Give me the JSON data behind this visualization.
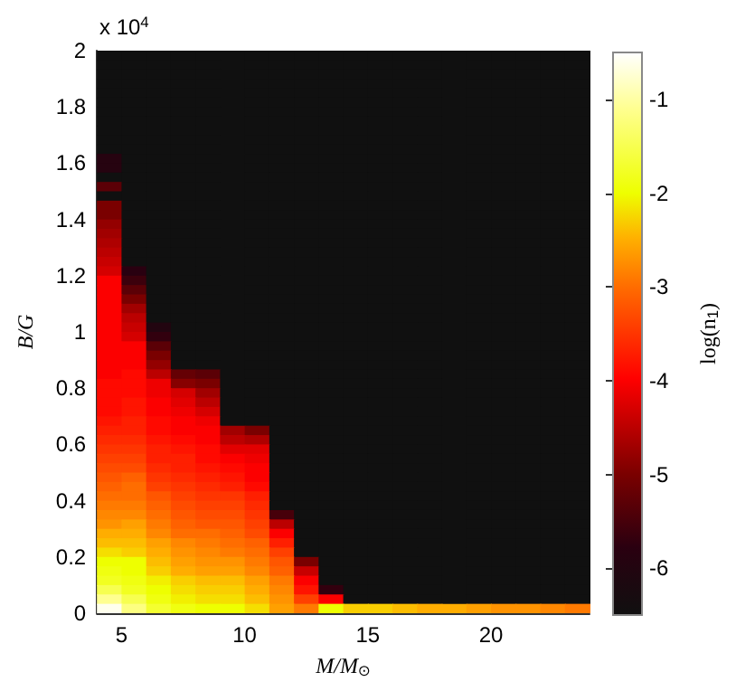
{
  "chart_data": {
    "type": "heatmap",
    "xlabel": "M/M$_{⊙}$",
    "ylabel": "B/G",
    "clabel": "log(n$_{1}$)",
    "annotations": [
      "x 10$^{4}$"
    ],
    "xlim": [
      4,
      24
    ],
    "xticks": [
      5,
      10,
      15,
      20
    ],
    "ylim": [
      0,
      2
    ],
    "yticks": [
      0,
      0.2,
      0.4,
      0.6,
      0.8,
      1,
      1.2,
      1.4,
      1.6,
      1.8,
      2
    ],
    "clim": [
      -6.5,
      -0.5
    ],
    "cticks": [
      -6,
      -5,
      -4,
      -3,
      -2,
      -1
    ],
    "cells": [
      [
        -6.5,
        -6.5,
        -6.5,
        -6.5,
        -6.5,
        -6.5,
        -6.5,
        -6.5,
        -6.5,
        -6.5,
        -6.5,
        -6.5,
        -6.5,
        -6.5,
        -6.5,
        -6.5,
        -6.5,
        -6.5,
        -6.5,
        -6.5
      ],
      [
        -6.5,
        -6.5,
        -6.5,
        -6.5,
        -6.5,
        -6.5,
        -6.5,
        -6.5,
        -6.5,
        -6.5,
        -6.5,
        -6.5,
        -6.5,
        -6.5,
        -6.5,
        -6.5,
        -6.5,
        -6.5,
        -6.5,
        -6.5
      ],
      [
        -6.5,
        -6.5,
        -6.5,
        -6.5,
        -6.5,
        -6.5,
        -6.5,
        -6.5,
        -6.5,
        -6.5,
        -6.5,
        -6.5,
        -6.5,
        -6.5,
        -6.5,
        -6.5,
        -6.5,
        -6.5,
        -6.5,
        -6.5
      ],
      [
        -6.5,
        -6.5,
        -6.5,
        -6.5,
        -6.5,
        -6.5,
        -6.5,
        -6.5,
        -6.5,
        -6.5,
        -6.5,
        -6.5,
        -6.5,
        -6.5,
        -6.5,
        -6.5,
        -6.5,
        -6.5,
        -6.5,
        -6.5
      ],
      [
        -6.5,
        -6.5,
        -6.5,
        -6.5,
        -6.5,
        -6.5,
        -6.5,
        -6.5,
        -6.5,
        -6.5,
        -6.5,
        -6.5,
        -6.5,
        -6.5,
        -6.5,
        -6.5,
        -6.5,
        -6.5,
        -6.5,
        -6.5
      ],
      [
        -6.5,
        -6.5,
        -6.5,
        -6.5,
        -6.5,
        -6.5,
        -6.5,
        -6.5,
        -6.5,
        -6.5,
        -6.5,
        -6.5,
        -6.5,
        -6.5,
        -6.5,
        -6.5,
        -6.5,
        -6.5,
        -6.5,
        -6.5
      ],
      [
        -6.5,
        -6.5,
        -6.5,
        -6.5,
        -6.5,
        -6.5,
        -6.5,
        -6.5,
        -6.5,
        -6.5,
        -6.5,
        -6.5,
        -6.5,
        -6.5,
        -6.5,
        -6.5,
        -6.5,
        -6.5,
        -6.5,
        -6.5
      ],
      [
        -6.5,
        -6.5,
        -6.5,
        -6.5,
        -6.5,
        -6.5,
        -6.5,
        -6.5,
        -6.5,
        -6.5,
        -6.5,
        -6.5,
        -6.5,
        -6.5,
        -6.5,
        -6.5,
        -6.5,
        -6.5,
        -6.5,
        -6.5
      ],
      [
        -6.5,
        -6.5,
        -6.5,
        -6.5,
        -6.5,
        -6.5,
        -6.5,
        -6.5,
        -6.5,
        -6.5,
        -6.5,
        -6.5,
        -6.5,
        -6.5,
        -6.5,
        -6.5,
        -6.5,
        -6.5,
        -6.5,
        -6.5
      ],
      [
        -6.5,
        -6.5,
        -6.5,
        -6.5,
        -6.5,
        -6.5,
        -6.5,
        -6.5,
        -6.5,
        -6.5,
        -6.5,
        -6.5,
        -6.5,
        -6.5,
        -6.5,
        -6.5,
        -6.5,
        -6.5,
        -6.5,
        -6.5
      ],
      [
        -6.5,
        -6.5,
        -6.5,
        -6.5,
        -6.5,
        -6.5,
        -6.5,
        -6.5,
        -6.5,
        -6.5,
        -6.5,
        -6.5,
        -6.5,
        -6.5,
        -6.5,
        -6.5,
        -6.5,
        -6.5,
        -6.5,
        -6.5
      ],
      [
        -5.9,
        -6.5,
        -6.5,
        -6.5,
        -6.5,
        -6.5,
        -6.5,
        -6.5,
        -6.5,
        -6.5,
        -6.5,
        -6.5,
        -6.5,
        -6.5,
        -6.5,
        -6.5,
        -6.5,
        -6.5,
        -6.5,
        -6.5
      ],
      [
        -5.9,
        -6.5,
        -6.5,
        -6.5,
        -6.5,
        -6.5,
        -6.5,
        -6.5,
        -6.5,
        -6.5,
        -6.5,
        -6.5,
        -6.5,
        -6.5,
        -6.5,
        -6.5,
        -6.5,
        -6.5,
        -6.5,
        -6.5
      ],
      [
        -6.5,
        -6.5,
        -6.5,
        -6.5,
        -6.5,
        -6.5,
        -6.5,
        -6.5,
        -6.5,
        -6.5,
        -6.5,
        -6.5,
        -6.5,
        -6.5,
        -6.5,
        -6.5,
        -6.5,
        -6.5,
        -6.5,
        -6.5
      ],
      [
        -5.3,
        -6.5,
        -6.5,
        -6.5,
        -6.5,
        -6.5,
        -6.5,
        -6.5,
        -6.5,
        -6.5,
        -6.5,
        -6.5,
        -6.5,
        -6.5,
        -6.5,
        -6.5,
        -6.5,
        -6.5,
        -6.5,
        -6.5
      ],
      [
        -6.5,
        -6.5,
        -6.5,
        -6.5,
        -6.5,
        -6.5,
        -6.5,
        -6.5,
        -6.5,
        -6.5,
        -6.5,
        -6.5,
        -6.5,
        -6.5,
        -6.5,
        -6.5,
        -6.5,
        -6.5,
        -6.5,
        -6.5
      ],
      [
        -5.0,
        -6.5,
        -6.5,
        -6.5,
        -6.5,
        -6.5,
        -6.5,
        -6.5,
        -6.5,
        -6.5,
        -6.5,
        -6.5,
        -6.5,
        -6.5,
        -6.5,
        -6.5,
        -6.5,
        -6.5,
        -6.5,
        -6.5
      ],
      [
        -5.0,
        -6.5,
        -6.5,
        -6.5,
        -6.5,
        -6.5,
        -6.5,
        -6.5,
        -6.5,
        -6.5,
        -6.5,
        -6.5,
        -6.5,
        -6.5,
        -6.5,
        -6.5,
        -6.5,
        -6.5,
        -6.5,
        -6.5
      ],
      [
        -4.8,
        -6.5,
        -6.5,
        -6.5,
        -6.5,
        -6.5,
        -6.5,
        -6.5,
        -6.5,
        -6.5,
        -6.5,
        -6.5,
        -6.5,
        -6.5,
        -6.5,
        -6.5,
        -6.5,
        -6.5,
        -6.5,
        -6.5
      ],
      [
        -4.7,
        -6.5,
        -6.5,
        -6.5,
        -6.5,
        -6.5,
        -6.5,
        -6.5,
        -6.5,
        -6.5,
        -6.5,
        -6.5,
        -6.5,
        -6.5,
        -6.5,
        -6.5,
        -6.5,
        -6.5,
        -6.5,
        -6.5
      ],
      [
        -4.6,
        -6.5,
        -6.5,
        -6.5,
        -6.5,
        -6.5,
        -6.5,
        -6.5,
        -6.5,
        -6.5,
        -6.5,
        -6.5,
        -6.5,
        -6.5,
        -6.5,
        -6.5,
        -6.5,
        -6.5,
        -6.5,
        -6.5
      ],
      [
        -4.5,
        -6.5,
        -6.5,
        -6.5,
        -6.5,
        -6.5,
        -6.5,
        -6.5,
        -6.5,
        -6.5,
        -6.5,
        -6.5,
        -6.5,
        -6.5,
        -6.5,
        -6.5,
        -6.5,
        -6.5,
        -6.5,
        -6.5
      ],
      [
        -4.4,
        -6.5,
        -6.5,
        -6.5,
        -6.5,
        -6.5,
        -6.5,
        -6.5,
        -6.5,
        -6.5,
        -6.5,
        -6.5,
        -6.5,
        -6.5,
        -6.5,
        -6.5,
        -6.5,
        -6.5,
        -6.5,
        -6.5
      ],
      [
        -4.3,
        -5.8,
        -6.5,
        -6.5,
        -6.5,
        -6.5,
        -6.5,
        -6.5,
        -6.5,
        -6.5,
        -6.5,
        -6.5,
        -6.5,
        -6.5,
        -6.5,
        -6.5,
        -6.5,
        -6.5,
        -6.5,
        -6.5
      ],
      [
        -4.0,
        -5.6,
        -6.5,
        -6.5,
        -6.5,
        -6.5,
        -6.5,
        -6.5,
        -6.5,
        -6.5,
        -6.5,
        -6.5,
        -6.5,
        -6.5,
        -6.5,
        -6.5,
        -6.5,
        -6.5,
        -6.5,
        -6.5
      ],
      [
        -4.0,
        -5.3,
        -6.5,
        -6.5,
        -6.5,
        -6.5,
        -6.5,
        -6.5,
        -6.5,
        -6.5,
        -6.5,
        -6.5,
        -6.5,
        -6.5,
        -6.5,
        -6.5,
        -6.5,
        -6.5,
        -6.5,
        -6.5
      ],
      [
        -4.0,
        -5.0,
        -6.5,
        -6.5,
        -6.5,
        -6.5,
        -6.5,
        -6.5,
        -6.5,
        -6.5,
        -6.5,
        -6.5,
        -6.5,
        -6.5,
        -6.5,
        -6.5,
        -6.5,
        -6.5,
        -6.5,
        -6.5
      ],
      [
        -4.0,
        -4.7,
        -6.5,
        -6.5,
        -6.5,
        -6.5,
        -6.5,
        -6.5,
        -6.5,
        -6.5,
        -6.5,
        -6.5,
        -6.5,
        -6.5,
        -6.5,
        -6.5,
        -6.5,
        -6.5,
        -6.5,
        -6.5
      ],
      [
        -4.0,
        -4.5,
        -6.5,
        -6.5,
        -6.5,
        -6.5,
        -6.5,
        -6.5,
        -6.5,
        -6.5,
        -6.5,
        -6.5,
        -6.5,
        -6.5,
        -6.5,
        -6.5,
        -6.5,
        -6.5,
        -6.5,
        -6.5
      ],
      [
        -4.0,
        -4.4,
        -6.0,
        -6.5,
        -6.5,
        -6.5,
        -6.5,
        -6.5,
        -6.5,
        -6.5,
        -6.5,
        -6.5,
        -6.5,
        -6.5,
        -6.5,
        -6.5,
        -6.5,
        -6.5,
        -6.5,
        -6.5
      ],
      [
        -4.0,
        -4.3,
        -5.7,
        -6.5,
        -6.5,
        -6.5,
        -6.5,
        -6.5,
        -6.5,
        -6.5,
        -6.5,
        -6.5,
        -6.5,
        -6.5,
        -6.5,
        -6.5,
        -6.5,
        -6.5,
        -6.5,
        -6.5
      ],
      [
        -4.0,
        -4.0,
        -5.3,
        -6.5,
        -6.5,
        -6.5,
        -6.5,
        -6.5,
        -6.5,
        -6.5,
        -6.5,
        -6.5,
        -6.5,
        -6.5,
        -6.5,
        -6.5,
        -6.5,
        -6.5,
        -6.5,
        -6.5
      ],
      [
        -4.0,
        -4.0,
        -5.0,
        -6.5,
        -6.5,
        -6.5,
        -6.5,
        -6.5,
        -6.5,
        -6.5,
        -6.5,
        -6.5,
        -6.5,
        -6.5,
        -6.5,
        -6.5,
        -6.5,
        -6.5,
        -6.5,
        -6.5
      ],
      [
        -4.0,
        -4.0,
        -4.8,
        -6.5,
        -6.5,
        -6.5,
        -6.5,
        -6.5,
        -6.5,
        -6.5,
        -6.5,
        -6.5,
        -6.5,
        -6.5,
        -6.5,
        -6.5,
        -6.5,
        -6.5,
        -6.5,
        -6.5
      ],
      [
        -4.0,
        -3.9,
        -4.5,
        -5.2,
        -5.3,
        -6.5,
        -6.5,
        -6.5,
        -6.5,
        -6.5,
        -6.5,
        -6.5,
        -6.5,
        -6.5,
        -6.5,
        -6.5,
        -6.5,
        -6.5,
        -6.5,
        -6.5
      ],
      [
        -3.9,
        -3.9,
        -4.1,
        -4.9,
        -5.0,
        -6.5,
        -6.5,
        -6.5,
        -6.5,
        -6.5,
        -6.5,
        -6.5,
        -6.5,
        -6.5,
        -6.5,
        -6.5,
        -6.5,
        -6.5,
        -6.5,
        -6.5
      ],
      [
        -3.9,
        -3.9,
        -4.1,
        -4.3,
        -4.7,
        -6.5,
        -6.5,
        -6.5,
        -6.5,
        -6.5,
        -6.5,
        -6.5,
        -6.5,
        -6.5,
        -6.5,
        -6.5,
        -6.5,
        -6.5,
        -6.5,
        -6.5
      ],
      [
        -3.9,
        -3.8,
        -4.0,
        -4.2,
        -4.5,
        -6.5,
        -6.5,
        -6.5,
        -6.5,
        -6.5,
        -6.5,
        -6.5,
        -6.5,
        -6.5,
        -6.5,
        -6.5,
        -6.5,
        -6.5,
        -6.5,
        -6.5
      ],
      [
        -3.9,
        -3.8,
        -4.0,
        -4.1,
        -4.3,
        -6.5,
        -6.5,
        -6.5,
        -6.5,
        -6.5,
        -6.5,
        -6.5,
        -6.5,
        -6.5,
        -6.5,
        -6.5,
        -6.5,
        -6.5,
        -6.5,
        -6.5
      ],
      [
        -3.8,
        -3.7,
        -3.9,
        -4.0,
        -4.1,
        -6.5,
        -6.5,
        -6.5,
        -6.5,
        -6.5,
        -6.5,
        -6.5,
        -6.5,
        -6.5,
        -6.5,
        -6.5,
        -6.5,
        -6.5,
        -6.5,
        -6.5
      ],
      [
        -3.7,
        -3.7,
        -3.9,
        -4.0,
        -4.0,
        -4.7,
        -5.0,
        -6.5,
        -6.5,
        -6.5,
        -6.5,
        -6.5,
        -6.5,
        -6.5,
        -6.5,
        -6.5,
        -6.5,
        -6.5,
        -6.5,
        -6.5
      ],
      [
        -3.6,
        -3.6,
        -3.8,
        -3.9,
        -4.0,
        -4.5,
        -4.6,
        -6.5,
        -6.5,
        -6.5,
        -6.5,
        -6.5,
        -6.5,
        -6.5,
        -6.5,
        -6.5,
        -6.5,
        -6.5,
        -6.5,
        -6.5
      ],
      [
        -3.5,
        -3.5,
        -3.7,
        -3.8,
        -3.9,
        -4.2,
        -4.2,
        -6.5,
        -6.5,
        -6.5,
        -6.5,
        -6.5,
        -6.5,
        -6.5,
        -6.5,
        -6.5,
        -6.5,
        -6.5,
        -6.5,
        -6.5
      ],
      [
        -3.4,
        -3.4,
        -3.7,
        -3.7,
        -3.9,
        -4.0,
        -4.1,
        -6.5,
        -6.5,
        -6.5,
        -6.5,
        -6.5,
        -6.5,
        -6.5,
        -6.5,
        -6.5,
        -6.5,
        -6.5,
        -6.5,
        -6.5
      ],
      [
        -3.3,
        -3.3,
        -3.6,
        -3.7,
        -3.8,
        -3.9,
        -4.0,
        -6.5,
        -6.5,
        -6.5,
        -6.5,
        -6.5,
        -6.5,
        -6.5,
        -6.5,
        -6.5,
        -6.5,
        -6.5,
        -6.5,
        -6.5
      ],
      [
        -3.2,
        -3.1,
        -3.5,
        -3.6,
        -3.7,
        -3.8,
        -4.0,
        -6.5,
        -6.5,
        -6.5,
        -6.5,
        -6.5,
        -6.5,
        -6.5,
        -6.5,
        -6.5,
        -6.5,
        -6.5,
        -6.5,
        -6.5
      ],
      [
        -3.1,
        -3.0,
        -3.4,
        -3.5,
        -3.6,
        -3.7,
        -3.9,
        -6.5,
        -6.5,
        -6.5,
        -6.5,
        -6.5,
        -6.5,
        -6.5,
        -6.5,
        -6.5,
        -6.5,
        -6.5,
        -6.5,
        -6.5
      ],
      [
        -3.0,
        -3.0,
        -3.2,
        -3.4,
        -3.5,
        -3.5,
        -3.7,
        -6.5,
        -6.5,
        -6.5,
        -6.5,
        -6.5,
        -6.5,
        -6.5,
        -6.5,
        -6.5,
        -6.5,
        -6.5,
        -6.5,
        -6.5
      ],
      [
        -2.9,
        -2.9,
        -3.1,
        -3.3,
        -3.4,
        -3.4,
        -3.6,
        -6.5,
        -6.5,
        -6.5,
        -6.5,
        -6.5,
        -6.5,
        -6.5,
        -6.5,
        -6.5,
        -6.5,
        -6.5,
        -6.5,
        -6.5
      ],
      [
        -2.8,
        -2.8,
        -3.0,
        -3.2,
        -3.3,
        -3.3,
        -3.5,
        -5.5,
        -6.5,
        -6.5,
        -6.5,
        -6.5,
        -6.5,
        -6.5,
        -6.5,
        -6.5,
        -6.5,
        -6.5,
        -6.5,
        -6.5
      ],
      [
        -2.7,
        -2.6,
        -2.9,
        -3.1,
        -3.2,
        -3.2,
        -3.4,
        -4.5,
        -6.5,
        -6.5,
        -6.5,
        -6.5,
        -6.5,
        -6.5,
        -6.5,
        -6.5,
        -6.5,
        -6.5,
        -6.5,
        -6.5
      ],
      [
        -2.5,
        -2.5,
        -2.8,
        -3.0,
        -3.0,
        -3.1,
        -3.3,
        -4.0,
        -6.5,
        -6.5,
        -6.5,
        -6.5,
        -6.5,
        -6.5,
        -6.5,
        -6.5,
        -6.5,
        -6.5,
        -6.5,
        -6.5
      ],
      [
        -2.4,
        -2.4,
        -2.6,
        -2.8,
        -2.9,
        -3.0,
        -3.1,
        -3.7,
        -6.5,
        -6.5,
        -6.5,
        -6.5,
        -6.5,
        -6.5,
        -6.5,
        -6.5,
        -6.5,
        -6.5,
        -6.5,
        -6.5
      ],
      [
        -2.2,
        -2.3,
        -2.5,
        -2.7,
        -2.8,
        -2.9,
        -3.0,
        -3.4,
        -6.5,
        -6.5,
        -6.5,
        -6.5,
        -6.5,
        -6.5,
        -6.5,
        -6.5,
        -6.5,
        -6.5,
        -6.5,
        -6.5
      ],
      [
        -2.0,
        -2.0,
        -2.4,
        -2.6,
        -2.7,
        -2.7,
        -2.9,
        -3.2,
        -5.0,
        -6.5,
        -6.5,
        -6.5,
        -6.5,
        -6.5,
        -6.5,
        -6.5,
        -6.5,
        -6.5,
        -6.5,
        -6.5
      ],
      [
        -1.9,
        -2.0,
        -2.3,
        -2.5,
        -2.6,
        -2.6,
        -2.8,
        -3.1,
        -4.4,
        -6.5,
        -6.5,
        -6.5,
        -6.5,
        -6.5,
        -6.5,
        -6.5,
        -6.5,
        -6.5,
        -6.5,
        -6.5
      ],
      [
        -1.8,
        -1.9,
        -2.1,
        -2.3,
        -2.4,
        -2.4,
        -2.6,
        -2.9,
        -4.0,
        -6.5,
        -6.5,
        -6.5,
        -6.5,
        -6.5,
        -6.5,
        -6.5,
        -6.5,
        -6.5,
        -6.5,
        -6.5
      ],
      [
        -1.5,
        -1.8,
        -2.0,
        -2.2,
        -2.3,
        -2.3,
        -2.5,
        -2.8,
        -3.8,
        -5.7,
        -6.5,
        -6.5,
        -6.5,
        -6.5,
        -6.5,
        -6.5,
        -6.5,
        -6.5,
        -6.5,
        -6.5
      ],
      [
        -1.1,
        -1.5,
        -1.9,
        -2.1,
        -2.2,
        -2.2,
        -2.4,
        -2.7,
        -3.4,
        -4.0,
        -6.5,
        -6.5,
        -6.5,
        -6.5,
        -6.5,
        -6.5,
        -6.5,
        -6.5,
        -6.5,
        -6.5
      ],
      [
        -0.6,
        -1.2,
        -1.7,
        -1.9,
        -2.0,
        -2.0,
        -2.2,
        -2.6,
        -2.9,
        -2.0,
        -2.3,
        -2.3,
        -2.4,
        -2.5,
        -2.5,
        -2.6,
        -2.7,
        -2.7,
        -2.8,
        -2.9
      ]
    ]
  }
}
